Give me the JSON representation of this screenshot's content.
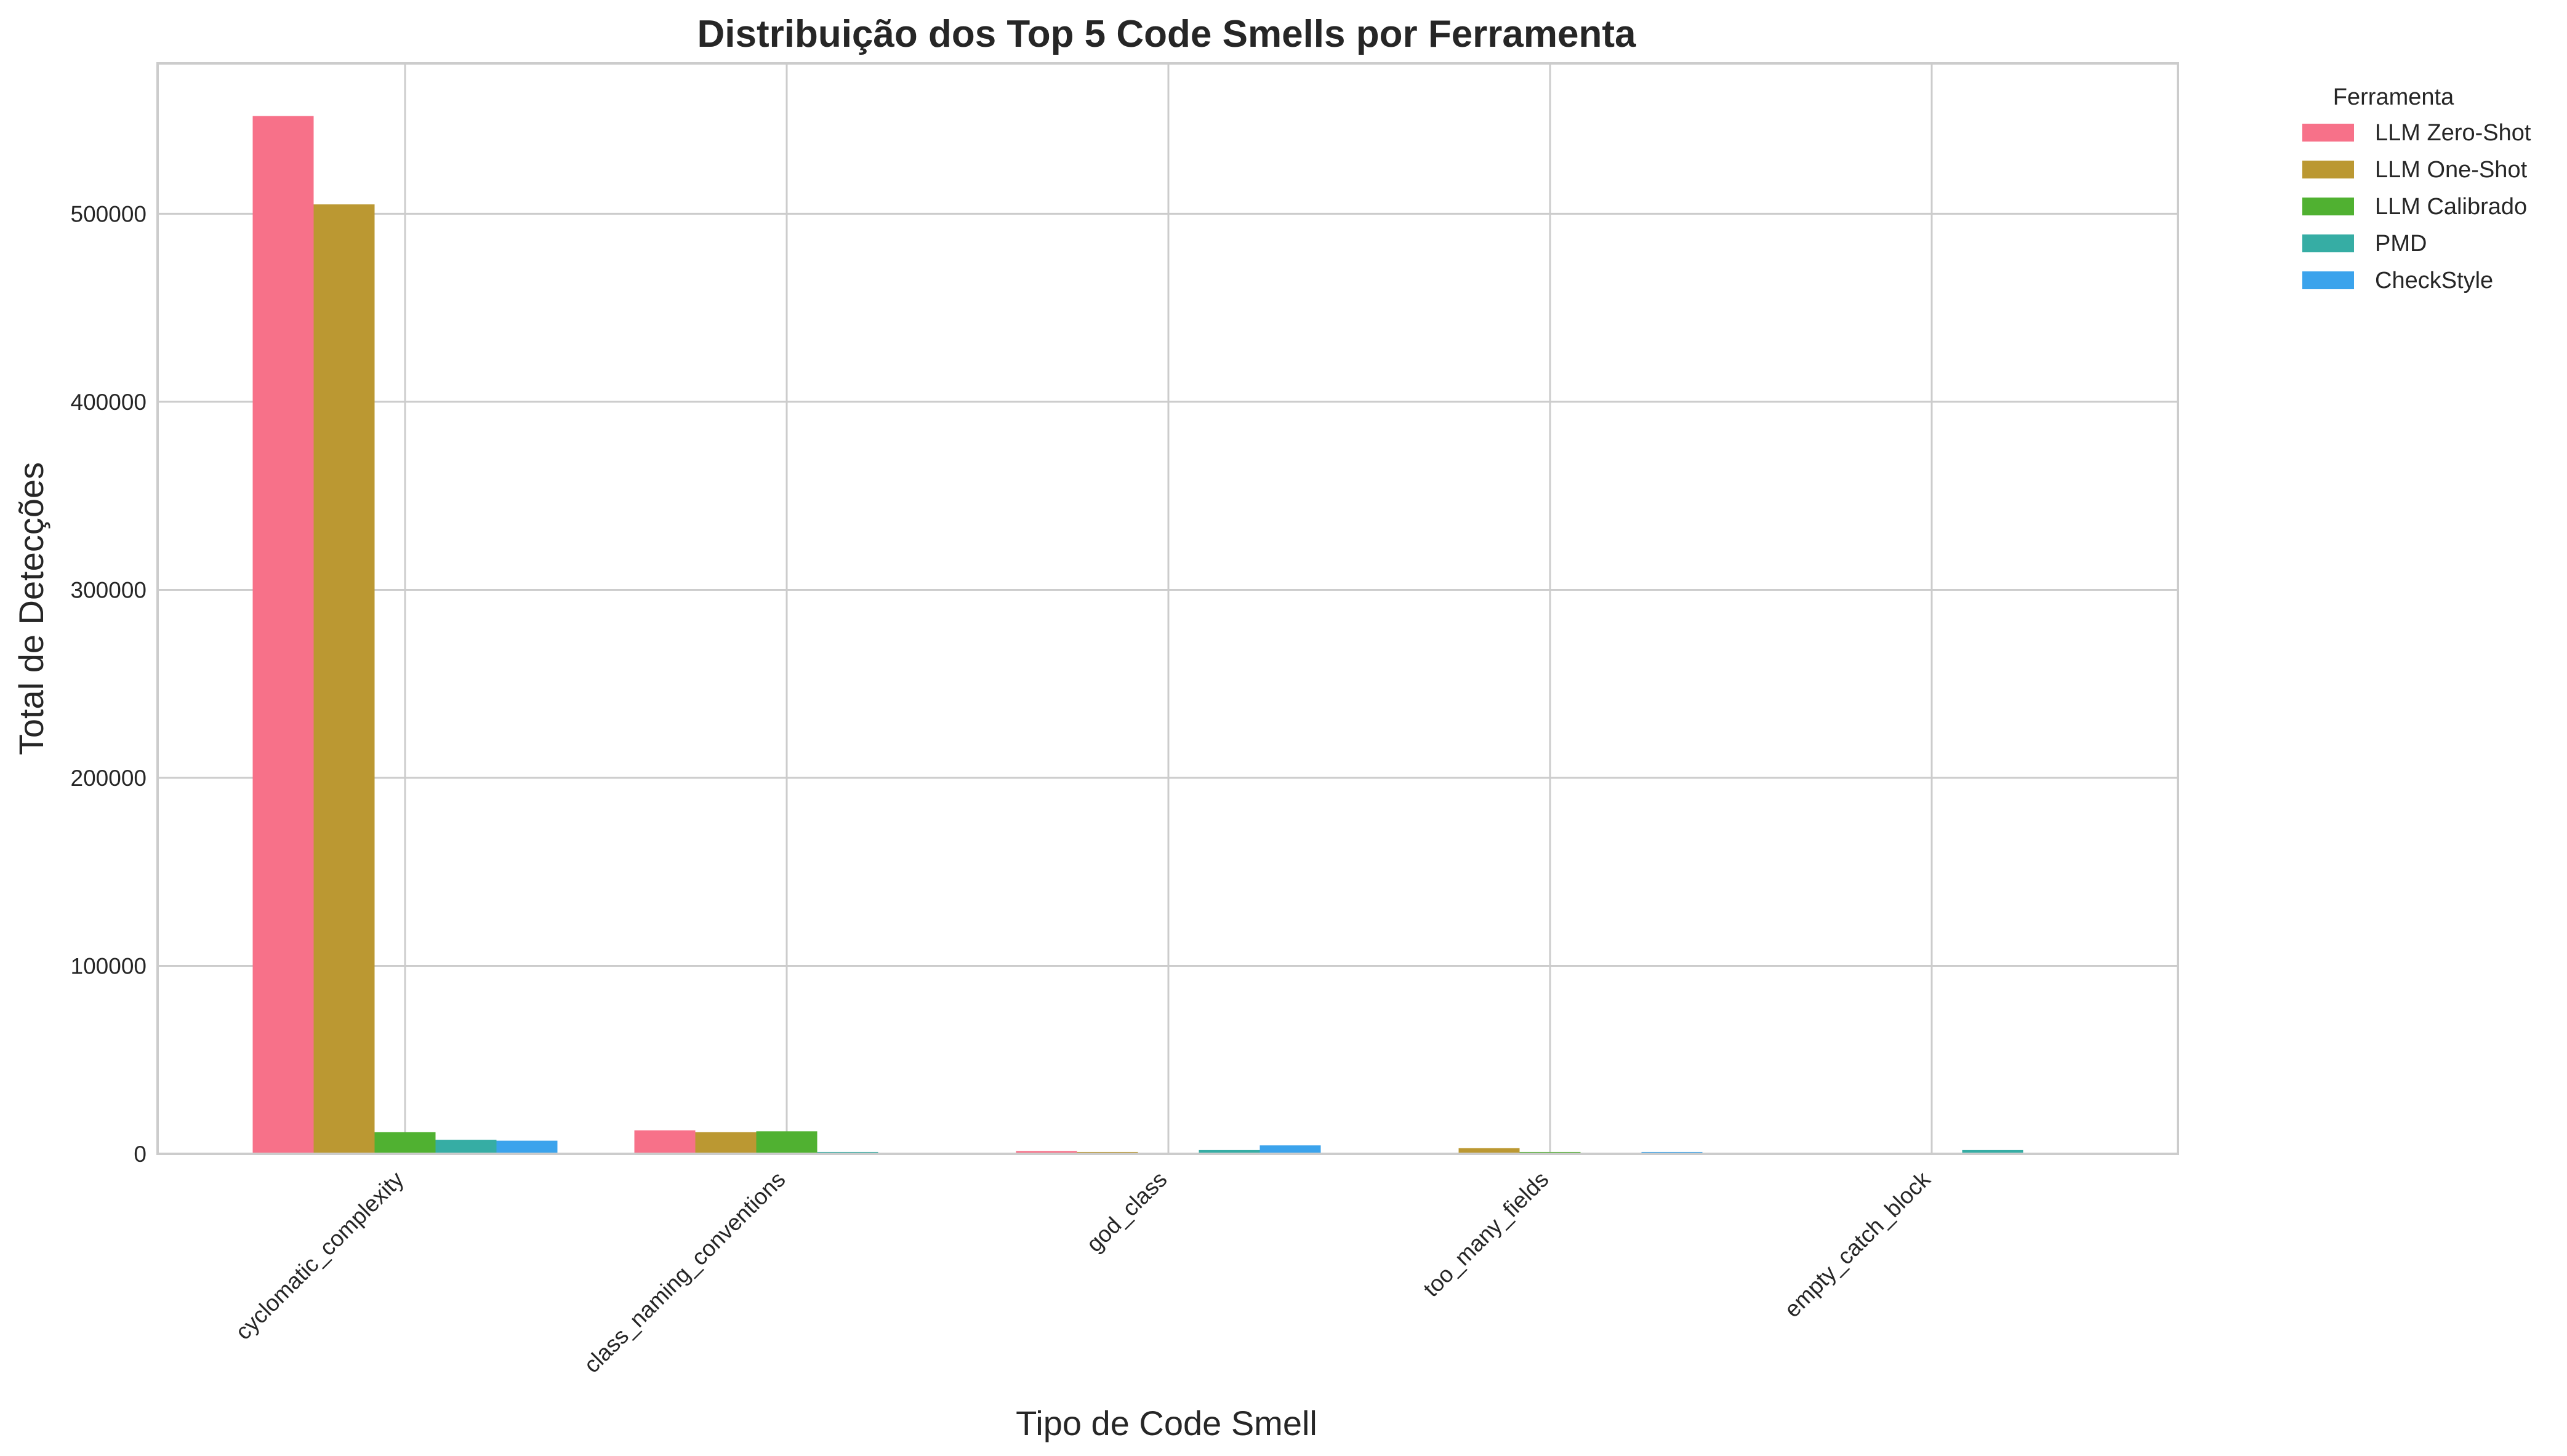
{
  "chart_data": {
    "type": "bar",
    "title": "Distribuição dos Top 5 Code Smells por Ferramenta",
    "xlabel": "Tipo de Code Smell",
    "ylabel": "Total de Detecções",
    "categories": [
      "cyclomatic_complexity",
      "class_naming_conventions",
      "god_class",
      "too_many_fields",
      "empty_catch_block"
    ],
    "ylim": [
      0,
      580000
    ],
    "yticks": [
      0,
      100000,
      200000,
      300000,
      400000,
      500000
    ],
    "ytick_labels": [
      "0",
      "100000",
      "200000",
      "300000",
      "400000",
      "500000"
    ],
    "grid": true,
    "legend": {
      "title": "Ferramenta",
      "position": "outside top-right"
    },
    "series": [
      {
        "name": "LLM Zero-Shot",
        "color": "#f77189",
        "values": [
          552000,
          12500,
          1500,
          0,
          0
        ]
      },
      {
        "name": "LLM One-Shot",
        "color": "#bb9832",
        "values": [
          505000,
          11500,
          1000,
          3000,
          0
        ]
      },
      {
        "name": "LLM Calibrado",
        "color": "#50b131",
        "values": [
          11500,
          12000,
          0,
          1000,
          0
        ]
      },
      {
        "name": "PMD",
        "color": "#36ada4",
        "values": [
          7500,
          1000,
          2000,
          0,
          2000
        ]
      },
      {
        "name": "CheckStyle",
        "color": "#3ba3ec",
        "values": [
          7000,
          0,
          4500,
          1000,
          0
        ]
      }
    ]
  }
}
